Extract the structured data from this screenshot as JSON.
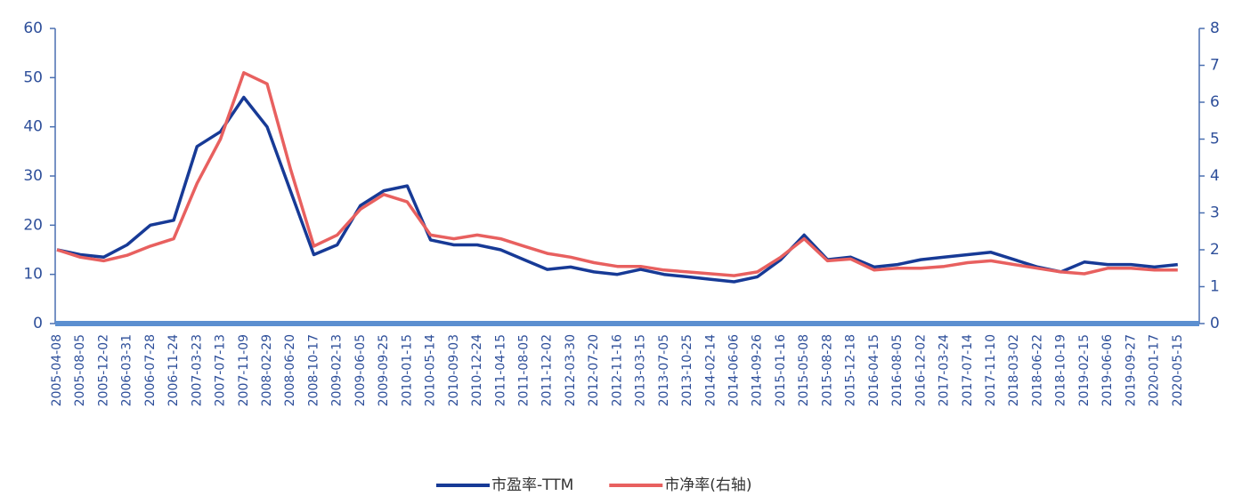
{
  "chart_data": {
    "type": "line",
    "categories": [
      "2005-04-08",
      "2005-08-05",
      "2005-12-02",
      "2006-03-31",
      "2006-07-28",
      "2006-11-24",
      "2007-03-23",
      "2007-07-13",
      "2007-11-09",
      "2008-02-29",
      "2008-06-20",
      "2008-10-17",
      "2009-02-13",
      "2009-06-05",
      "2009-09-25",
      "2010-01-15",
      "2010-05-14",
      "2010-09-03",
      "2010-12-24",
      "2011-04-15",
      "2011-08-05",
      "2011-12-02",
      "2012-03-30",
      "2012-07-20",
      "2012-11-16",
      "2013-03-15",
      "2013-07-05",
      "2013-10-25",
      "2014-02-14",
      "2014-06-06",
      "2014-09-26",
      "2015-01-16",
      "2015-05-08",
      "2015-08-28",
      "2015-12-18",
      "2016-04-15",
      "2016-08-05",
      "2016-12-02",
      "2017-03-24",
      "2017-07-14",
      "2017-11-10",
      "2018-03-02",
      "2018-06-22",
      "2018-10-19",
      "2019-02-15",
      "2019-06-06",
      "2019-09-27",
      "2020-01-17",
      "2020-05-15"
    ],
    "series": [
      {
        "name": "市盈率-TTM",
        "color": "#173a96",
        "values": [
          15,
          14,
          13.5,
          16,
          20,
          21,
          36,
          39,
          46,
          40,
          27,
          14,
          16,
          24,
          27,
          28,
          17,
          16,
          16,
          15,
          13,
          11,
          11.5,
          10.5,
          10,
          11,
          10,
          9.5,
          9,
          8.5,
          9.5,
          13,
          18,
          13,
          13.5,
          11.5,
          12,
          13,
          13.5,
          14,
          14.5,
          13,
          11.5,
          10.5,
          12.5,
          12,
          12,
          11.5,
          12
        ]
      },
      {
        "name": "市净率(右轴)",
        "color": "#e8605f",
        "axis": "y2",
        "values": [
          2.0,
          1.8,
          1.7,
          1.85,
          2.1,
          2.3,
          3.8,
          5.0,
          6.8,
          6.5,
          4.2,
          2.1,
          2.4,
          3.1,
          3.5,
          3.3,
          2.4,
          2.3,
          2.4,
          2.3,
          2.1,
          1.9,
          1.8,
          1.65,
          1.55,
          1.55,
          1.45,
          1.4,
          1.35,
          1.3,
          1.4,
          1.8,
          2.3,
          1.7,
          1.75,
          1.45,
          1.5,
          1.5,
          1.55,
          1.65,
          1.7,
          1.6,
          1.5,
          1.4,
          1.35,
          1.5,
          1.5,
          1.45,
          1.45
        ]
      }
    ],
    "ylim": [
      0,
      60
    ],
    "yticks": [
      0,
      10,
      20,
      30,
      40,
      50,
      60
    ],
    "y2lim": [
      0,
      8
    ],
    "y2ticks": [
      0,
      1,
      2,
      3,
      4,
      5,
      6,
      7,
      8
    ],
    "legend": "bottom"
  }
}
